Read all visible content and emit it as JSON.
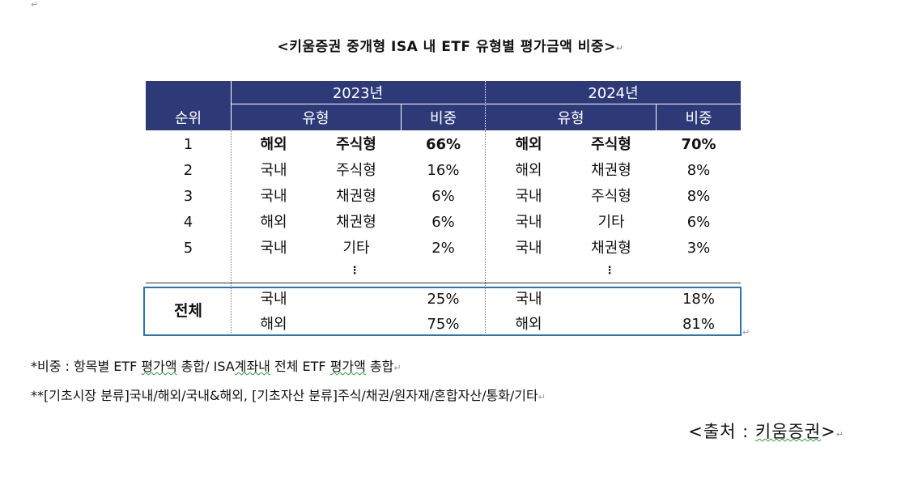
{
  "title": "<키움증권 중개형 ISA 내 ETF 유형별 평가금액 비중>",
  "table": {
    "header": {
      "year_2023": "2023년",
      "year_2024": "2024년",
      "rank": "순위",
      "type_2023": "유형",
      "ratio_2023": "비중",
      "type_2024": "유형",
      "ratio_2024": "비중"
    },
    "rows": [
      {
        "rank": "1",
        "a_region": "해외",
        "a_kind": "주식형",
        "a_ratio": "66%",
        "b_region": "해외",
        "b_kind": "주식형",
        "b_ratio": "70%"
      },
      {
        "rank": "2",
        "a_region": "국내",
        "a_kind": "주식형",
        "a_ratio": "16%",
        "b_region": "해외",
        "b_kind": "채권형",
        "b_ratio": "8%"
      },
      {
        "rank": "3",
        "a_region": "국내",
        "a_kind": "채권형",
        "a_ratio": "6%",
        "b_region": "국내",
        "b_kind": "주식형",
        "b_ratio": "8%"
      },
      {
        "rank": "4",
        "a_region": "해외",
        "a_kind": "채권형",
        "a_ratio": "6%",
        "b_region": "국내",
        "b_kind": "기타",
        "b_ratio": "6%"
      },
      {
        "rank": "5",
        "a_region": "국내",
        "a_kind": "기타",
        "a_ratio": "2%",
        "b_region": "국내",
        "b_kind": "채권형",
        "b_ratio": "3%"
      }
    ],
    "ellipsis": "⋮",
    "total": {
      "label": "전체",
      "a": [
        {
          "region": "국내",
          "ratio": "25%"
        },
        {
          "region": "해외",
          "ratio": "75%"
        }
      ],
      "b": [
        {
          "region": "국내",
          "ratio": "18%"
        },
        {
          "region": "해외",
          "ratio": "81%"
        }
      ]
    }
  },
  "notes": {
    "note1_prefix": "*비중 : 항목별 ETF ",
    "note1_sq1": "평가액",
    "note1_mid": " 총합/ ISA",
    "note1_sq2": "계좌내",
    "note1_mid2": " 전체 ETF ",
    "note1_sq3": "평가액",
    "note1_end": " 총합",
    "note2": "**[기초시장 분류]국내/해외/국내&해외, [기초자산 분류]주식/채권/원자재/혼합자산/통화/기타"
  },
  "source": {
    "open": "<",
    "label": "출처 : ",
    "name": "키움증권",
    "close": ">"
  },
  "para_mark": "↵",
  "colors": {
    "header_bg": "#2e3a78",
    "total_border": "#2c74b0"
  }
}
